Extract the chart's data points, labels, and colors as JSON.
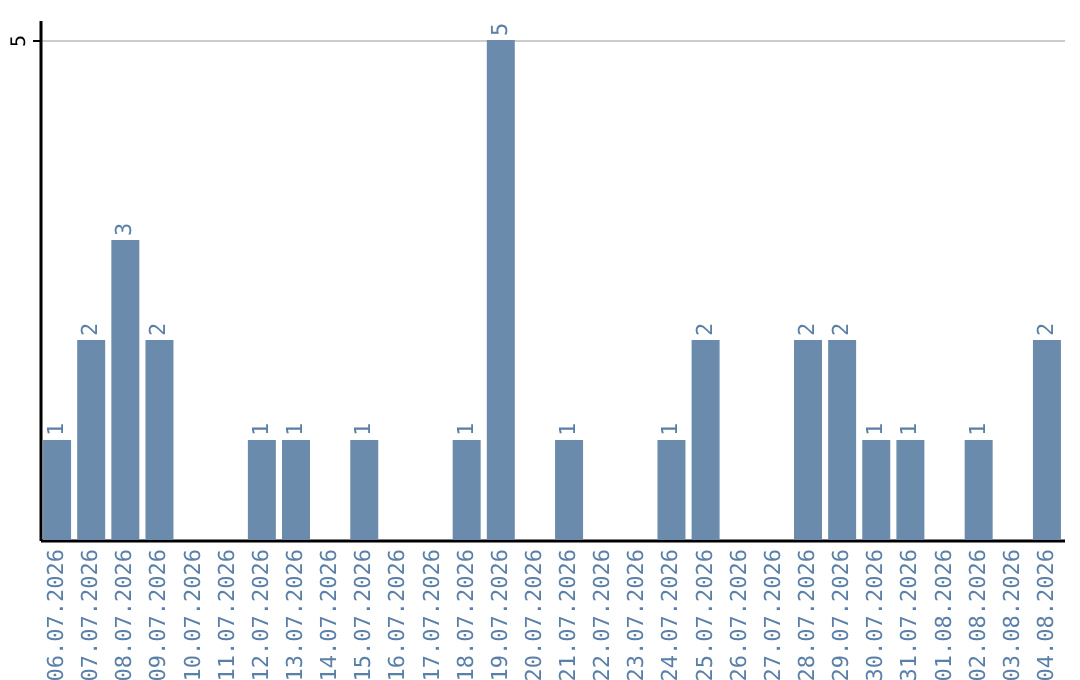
{
  "chart_data": {
    "type": "bar",
    "categories": [
      "06.07.2026",
      "07.07.2026",
      "08.07.2026",
      "09.07.2026",
      "10.07.2026",
      "11.07.2026",
      "12.07.2026",
      "13.07.2026",
      "14.07.2026",
      "15.07.2026",
      "16.07.2026",
      "17.07.2026",
      "18.07.2026",
      "19.07.2026",
      "20.07.2026",
      "21.07.2026",
      "22.07.2026",
      "23.07.2026",
      "24.07.2026",
      "25.07.2026",
      "26.07.2026",
      "27.07.2026",
      "28.07.2026",
      "29.07.2026",
      "30.07.2026",
      "31.07.2026",
      "01.08.2026",
      "02.08.2026",
      "03.08.2026",
      "04.08.2026"
    ],
    "values": [
      1,
      2,
      3,
      2,
      0,
      0,
      1,
      1,
      0,
      1,
      0,
      0,
      1,
      5,
      0,
      1,
      0,
      0,
      1,
      2,
      0,
      0,
      2,
      2,
      1,
      1,
      0,
      1,
      0,
      2
    ],
    "value_labels": [
      "1",
      "2",
      "3",
      "2",
      null,
      null,
      "1",
      "1",
      null,
      "1",
      null,
      null,
      "1",
      "5",
      null,
      "1",
      null,
      null,
      "1",
      "2",
      null,
      null,
      "2",
      "2",
      "1",
      "1",
      null,
      "1",
      null,
      "2"
    ],
    "color": "#6a8bab",
    "ylim": [
      0,
      5.2
    ],
    "yticks": [
      5
    ],
    "grid": "y"
  }
}
